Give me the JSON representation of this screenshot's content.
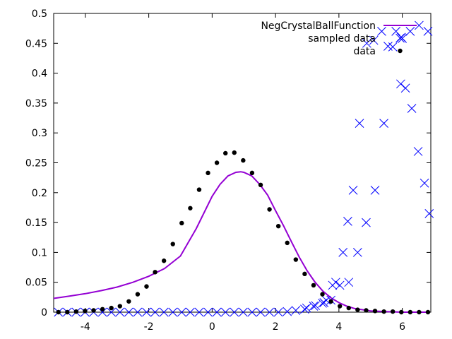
{
  "chart_data": {
    "type": "scatter",
    "xlim": [
      -5,
      6.9
    ],
    "ylim": [
      0,
      0.5
    ],
    "x_ticks": [
      -4,
      -2,
      0,
      2,
      4,
      6
    ],
    "y_ticks": [
      0,
      0.05,
      0.1,
      0.15,
      0.2,
      0.25,
      0.3,
      0.35,
      0.4,
      0.45,
      0.5
    ],
    "y_tick_labels": [
      "0",
      "0.05",
      "0.1",
      "0.15",
      "0.2",
      "0.25",
      "0.3",
      "0.35",
      "0.4",
      "0.45",
      "0.5"
    ],
    "grid": false,
    "legend_position": "top-right",
    "series": [
      {
        "name": "NegCrystalBallFunction",
        "style": "line",
        "color": "#9400d3",
        "x": [
          -5.0,
          -4.5,
          -4.0,
          -3.5,
          -3.0,
          -2.5,
          -2.0,
          -1.5,
          -1.0,
          -0.5,
          0.0,
          0.25,
          0.5,
          0.75,
          0.9,
          1.0,
          1.25,
          1.5,
          1.75,
          2.0,
          2.25,
          2.5,
          2.75,
          3.0,
          3.25,
          3.5,
          3.75,
          4.0,
          4.25,
          4.5,
          5.0,
          5.5,
          6.0,
          6.5,
          6.8
        ],
        "y": [
          0.023,
          0.027,
          0.031,
          0.036,
          0.042,
          0.05,
          0.06,
          0.073,
          0.094,
          0.14,
          0.194,
          0.214,
          0.228,
          0.234,
          0.235,
          0.234,
          0.228,
          0.214,
          0.196,
          0.17,
          0.145,
          0.118,
          0.092,
          0.069,
          0.05,
          0.035,
          0.024,
          0.016,
          0.01,
          0.006,
          0.002,
          0.001,
          0.0,
          0.0,
          0.0
        ]
      },
      {
        "name": "sampled data",
        "style": "cross",
        "color": "#0000ff",
        "x": [
          -4.85,
          -4.57,
          -4.29,
          -4.01,
          -3.74,
          -3.46,
          -3.18,
          -2.91,
          -2.63,
          -2.35,
          -2.07,
          -1.8,
          -1.52,
          -1.24,
          -0.96,
          -0.69,
          -0.41,
          -0.13,
          0.15,
          0.42,
          0.7,
          0.98,
          1.26,
          1.53,
          1.81,
          2.09,
          2.37,
          2.64,
          2.92,
          3.2,
          3.48,
          3.75,
          4.03,
          4.31,
          4.59,
          4.86,
          5.14,
          5.42,
          5.7,
          5.97,
          6.25,
          6.53,
          6.81,
          2.98,
          3.26,
          3.53,
          3.6,
          3.8,
          3.9,
          4.13,
          4.28,
          4.45,
          4.65,
          4.88,
          5.1,
          5.35,
          5.55,
          5.8,
          6.0,
          5.95,
          6.1,
          6.3,
          6.5,
          6.7,
          6.85
        ],
        "y": [
          0,
          0,
          0,
          0,
          0,
          0,
          0,
          0,
          0,
          0,
          0,
          0,
          0,
          0,
          0,
          0,
          0,
          0,
          0,
          0,
          0,
          0,
          0,
          0,
          0,
          0,
          0.001,
          0.003,
          0.005,
          0.01,
          0.015,
          0.02,
          0.045,
          0.05,
          0.1,
          0.15,
          0.204,
          0.316,
          0.444,
          0.46,
          0.47,
          0.48,
          0.47,
          0.007,
          0.011,
          0.016,
          0.02,
          0.045,
          0.05,
          0.1,
          0.152,
          0.204,
          0.316,
          0.45,
          0.455,
          0.47,
          0.445,
          0.47,
          0.458,
          0.382,
          0.375,
          0.341,
          0.269,
          0.216,
          0.165
        ]
      },
      {
        "name": "data",
        "style": "dot",
        "color": "#000000",
        "x": [
          -4.85,
          -4.57,
          -4.29,
          -4.01,
          -3.74,
          -3.46,
          -3.18,
          -2.91,
          -2.63,
          -2.35,
          -2.07,
          -1.8,
          -1.52,
          -1.24,
          -0.96,
          -0.69,
          -0.41,
          -0.13,
          0.15,
          0.42,
          0.7,
          0.98,
          1.26,
          1.53,
          1.81,
          2.09,
          2.37,
          2.64,
          2.92,
          3.2,
          3.48,
          3.75,
          4.03,
          4.31,
          4.59,
          4.86,
          5.14,
          5.42,
          5.7,
          5.97,
          6.25,
          6.53,
          6.81
        ],
        "y": [
          0.0,
          0.0,
          0.001,
          0.002,
          0.003,
          0.005,
          0.007,
          0.01,
          0.018,
          0.03,
          0.043,
          0.067,
          0.086,
          0.114,
          0.149,
          0.174,
          0.205,
          0.233,
          0.25,
          0.266,
          0.267,
          0.254,
          0.233,
          0.213,
          0.172,
          0.144,
          0.116,
          0.088,
          0.064,
          0.045,
          0.03,
          0.018,
          0.01,
          0.007,
          0.004,
          0.003,
          0.002,
          0.001,
          0.001,
          0.0,
          0.0,
          0.0,
          0.0
        ]
      }
    ]
  }
}
